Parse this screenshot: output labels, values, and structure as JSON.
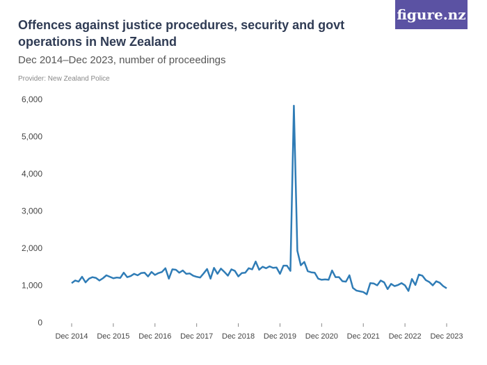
{
  "brand": "figure.nz",
  "chart_data": {
    "type": "line",
    "title": "Offences against justice procedures, security and govt operations in New Zealand",
    "subtitle": "Dec 2014–Dec 2023, number of proceedings",
    "provider": "Provider: New Zealand Police",
    "categories": [
      "Dec 2014",
      null,
      null,
      null,
      null,
      null,
      null,
      null,
      null,
      null,
      null,
      null,
      "Dec 2015",
      null,
      null,
      null,
      null,
      null,
      null,
      null,
      null,
      null,
      null,
      null,
      "Dec 2016",
      null,
      null,
      null,
      null,
      null,
      null,
      null,
      null,
      null,
      null,
      null,
      "Dec 2017",
      null,
      null,
      null,
      null,
      null,
      null,
      null,
      null,
      null,
      null,
      null,
      "Dec 2018",
      null,
      null,
      null,
      null,
      null,
      null,
      null,
      null,
      null,
      null,
      null,
      "Dec 2019",
      null,
      null,
      null,
      null,
      null,
      null,
      null,
      null,
      null,
      null,
      null,
      "Dec 2020",
      null,
      null,
      null,
      null,
      null,
      null,
      null,
      null,
      null,
      null,
      null,
      "Dec 2021",
      null,
      null,
      null,
      null,
      null,
      null,
      null,
      null,
      null,
      null,
      null,
      "Dec 2022",
      null,
      null,
      null,
      null,
      null,
      null,
      null,
      null,
      null,
      null,
      null,
      "Dec 2023"
    ],
    "values": [
      1080,
      1150,
      1120,
      1250,
      1100,
      1200,
      1240,
      1220,
      1150,
      1210,
      1290,
      1250,
      1210,
      1230,
      1220,
      1360,
      1240,
      1270,
      1330,
      1290,
      1350,
      1360,
      1260,
      1380,
      1300,
      1350,
      1380,
      1480,
      1200,
      1450,
      1440,
      1360,
      1420,
      1330,
      1340,
      1280,
      1250,
      1230,
      1340,
      1460,
      1200,
      1490,
      1330,
      1470,
      1380,
      1280,
      1450,
      1410,
      1260,
      1350,
      1360,
      1480,
      1450,
      1660,
      1440,
      1520,
      1480,
      1530,
      1490,
      1500,
      1330,
      1550,
      1550,
      1410,
      5850,
      1950,
      1560,
      1650,
      1400,
      1370,
      1360,
      1200,
      1170,
      1180,
      1170,
      1420,
      1240,
      1240,
      1130,
      1120,
      1290,
      950,
      880,
      860,
      840,
      780,
      1080,
      1070,
      1020,
      1150,
      1100,
      920,
      1060,
      1000,
      1030,
      1080,
      1020,
      870,
      1190,
      1030,
      1310,
      1280,
      1160,
      1110,
      1020,
      1130,
      1090,
      1000,
      940
    ],
    "color": "#2f7cb6",
    "ylim": [
      0,
      6000
    ],
    "yticks": [
      0,
      {
        "value": 1000,
        "label": "1,000"
      },
      {
        "value": 2000,
        "label": "2,000"
      },
      {
        "value": 3000,
        "label": "3,000"
      },
      {
        "value": 4000,
        "label": "4,000"
      },
      {
        "value": 5000,
        "label": "5,000"
      },
      {
        "value": 6000,
        "label": "6,000"
      }
    ],
    "grid": false
  }
}
